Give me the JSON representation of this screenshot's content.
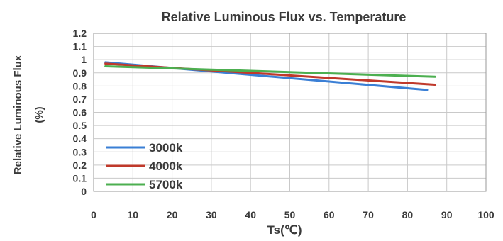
{
  "chart_data": {
    "type": "line",
    "title": "Relative Luminous Flux vs. Temperature",
    "xlabel": "Ts(℃)",
    "ylabel_line1": "Relative Luminous Flux",
    "ylabel_line2": "(%)",
    "xlim": [
      0,
      100
    ],
    "ylim": [
      0,
      1.2
    ],
    "xticks": [
      0,
      10,
      20,
      30,
      40,
      50,
      60,
      70,
      80,
      90,
      100
    ],
    "yticks": [
      0,
      0.1,
      0.2,
      0.3,
      0.4,
      0.5,
      0.6,
      0.7,
      0.8,
      0.9,
      1,
      1.1,
      1.2
    ],
    "grid": true,
    "legend_position": "bottom-left",
    "series": [
      {
        "name": "3000k",
        "color": "#3a7fd5",
        "x": [
          3,
          85
        ],
        "y": [
          0.98,
          0.77
        ]
      },
      {
        "name": "4000k",
        "color": "#c0392b",
        "x": [
          3,
          87
        ],
        "y": [
          0.97,
          0.81
        ]
      },
      {
        "name": "5700k",
        "color": "#4caf50",
        "x": [
          3,
          87
        ],
        "y": [
          0.95,
          0.87
        ]
      }
    ]
  }
}
